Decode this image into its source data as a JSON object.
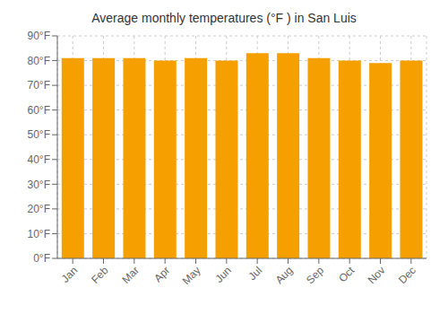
{
  "chart_data": {
    "type": "bar",
    "title": "Average monthly temperatures (°F ) in San Luis",
    "categories": [
      "Jan",
      "Feb",
      "Mar",
      "Apr",
      "May",
      "Jun",
      "Jul",
      "Aug",
      "Sep",
      "Oct",
      "Nov",
      "Dec"
    ],
    "values": [
      81,
      81,
      81,
      80,
      81,
      80,
      83,
      83,
      81,
      80,
      79,
      80
    ],
    "color": "#F5A000",
    "ylim": [
      0,
      90
    ],
    "yticks": [
      {
        "value": 0,
        "label": "0°F"
      },
      {
        "value": 10,
        "label": "10°F"
      },
      {
        "value": 20,
        "label": "20°F"
      },
      {
        "value": 30,
        "label": "30°F"
      },
      {
        "value": 40,
        "label": "40°F"
      },
      {
        "value": 50,
        "label": "50°F"
      },
      {
        "value": 60,
        "label": "60°F"
      },
      {
        "value": 70,
        "label": "70°F"
      },
      {
        "value": 80,
        "label": "80°F"
      },
      {
        "value": 90,
        "label": "90°F"
      }
    ],
    "grid": true
  }
}
